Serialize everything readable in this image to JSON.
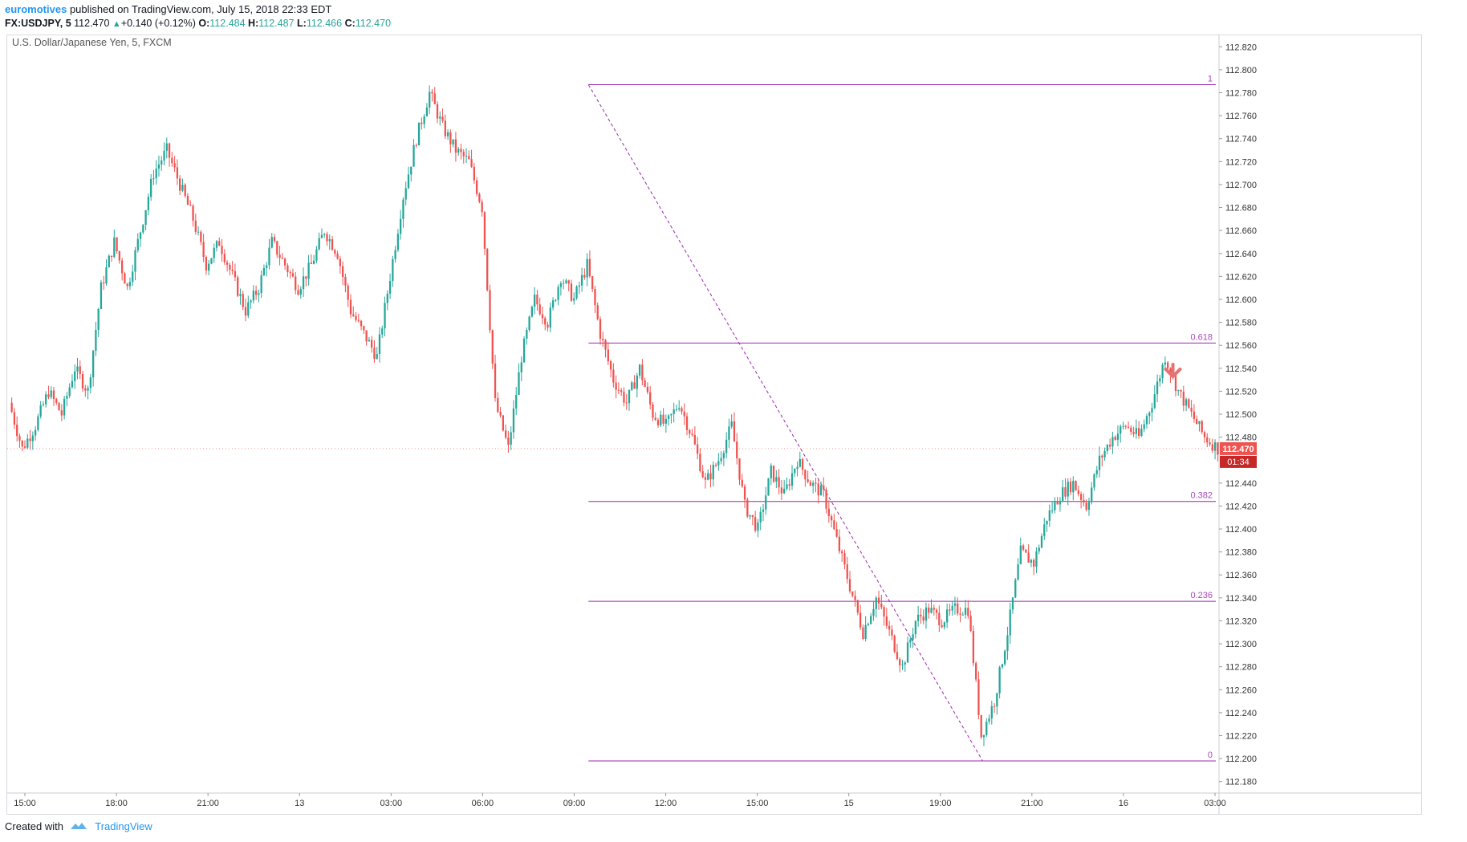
{
  "header": {
    "author": "euromotives",
    "published": "published on TradingView.com, July 15, 2018 22:33 EDT",
    "symbol": "FX:USDJPY, 5",
    "last": "112.470",
    "change": "+0.140 (+0.12%)",
    "o_label": "O:",
    "o_value": "112.484",
    "h_label": "H:",
    "h_value": "112.487",
    "l_label": "L:",
    "l_value": "112.466",
    "c_label": "C:",
    "c_value": "112.470"
  },
  "footer": {
    "created_with": "Created with",
    "brand": "TradingView",
    "logo_icon": "tradingview-logo-icon"
  },
  "colors": {
    "up": "#26a69a",
    "down": "#ef5350",
    "fib": "#9c27b0",
    "fib_label": "#ab47bc",
    "price_badge": "#ef5350",
    "arrow": "#e57373"
  },
  "chart_data": {
    "type": "candlestick",
    "title": "U.S. Dollar/Japanese Yen, 5, FXCM",
    "y_ticks": [
      "112.820",
      "112.800",
      "112.780",
      "112.760",
      "112.740",
      "112.720",
      "112.700",
      "112.680",
      "112.660",
      "112.640",
      "112.620",
      "112.600",
      "112.580",
      "112.560",
      "112.540",
      "112.520",
      "112.500",
      "112.480",
      "112.440",
      "112.420",
      "112.400",
      "112.380",
      "112.360",
      "112.340",
      "112.320",
      "112.300",
      "112.280",
      "112.260",
      "112.240",
      "112.220",
      "112.200",
      "112.180"
    ],
    "ylim": [
      112.17,
      112.83
    ],
    "x_ticks": [
      "15:00",
      "18:00",
      "21:00",
      "13",
      "03:00",
      "06:00",
      "09:00",
      "12:00",
      "15:00",
      "15",
      "19:00",
      "21:00",
      "16",
      "03:00"
    ],
    "current_price": "112.470",
    "countdown": "01:34",
    "fib_levels": [
      {
        "label": "1",
        "price": 112.787
      },
      {
        "label": "0.618",
        "price": 112.562
      },
      {
        "label": "0.382",
        "price": 112.424
      },
      {
        "label": "0.236",
        "price": 112.337
      },
      {
        "label": "0",
        "price": 112.198
      }
    ],
    "price_path": [
      [
        0,
        112.51
      ],
      [
        5,
        112.47
      ],
      [
        10,
        112.49
      ],
      [
        15,
        112.52
      ],
      [
        20,
        112.5
      ],
      [
        25,
        112.54
      ],
      [
        30,
        112.52
      ],
      [
        35,
        112.61
      ],
      [
        40,
        112.65
      ],
      [
        45,
        112.61
      ],
      [
        50,
        112.66
      ],
      [
        55,
        112.71
      ],
      [
        60,
        112.73
      ],
      [
        65,
        112.7
      ],
      [
        70,
        112.67
      ],
      [
        75,
        112.63
      ],
      [
        80,
        112.65
      ],
      [
        85,
        112.62
      ],
      [
        90,
        112.59
      ],
      [
        95,
        112.61
      ],
      [
        100,
        112.65
      ],
      [
        105,
        112.63
      ],
      [
        110,
        112.61
      ],
      [
        115,
        112.63
      ],
      [
        120,
        112.66
      ],
      [
        125,
        112.64
      ],
      [
        130,
        112.59
      ],
      [
        135,
        112.57
      ],
      [
        140,
        112.55
      ],
      [
        145,
        112.62
      ],
      [
        150,
        112.69
      ],
      [
        155,
        112.74
      ],
      [
        160,
        112.78
      ],
      [
        165,
        112.75
      ],
      [
        170,
        112.73
      ],
      [
        175,
        112.72
      ],
      [
        180,
        112.68
      ],
      [
        185,
        112.51
      ],
      [
        190,
        112.47
      ],
      [
        195,
        112.55
      ],
      [
        200,
        112.6
      ],
      [
        205,
        112.58
      ],
      [
        210,
        112.62
      ],
      [
        215,
        112.6
      ],
      [
        220,
        112.63
      ],
      [
        225,
        112.57
      ],
      [
        230,
        112.53
      ],
      [
        235,
        112.51
      ],
      [
        240,
        112.54
      ],
      [
        245,
        112.5
      ],
      [
        250,
        112.49
      ],
      [
        255,
        112.51
      ],
      [
        260,
        112.48
      ],
      [
        265,
        112.44
      ],
      [
        270,
        112.46
      ],
      [
        275,
        112.49
      ],
      [
        280,
        112.42
      ],
      [
        285,
        112.4
      ],
      [
        290,
        112.45
      ],
      [
        295,
        112.43
      ],
      [
        300,
        112.46
      ],
      [
        305,
        112.44
      ],
      [
        310,
        112.43
      ],
      [
        315,
        112.39
      ],
      [
        320,
        112.35
      ],
      [
        325,
        112.31
      ],
      [
        330,
        112.34
      ],
      [
        335,
        112.31
      ],
      [
        340,
        112.28
      ],
      [
        345,
        112.32
      ],
      [
        350,
        112.33
      ],
      [
        355,
        112.32
      ],
      [
        360,
        112.33
      ],
      [
        365,
        112.33
      ],
      [
        370,
        112.22
      ],
      [
        375,
        112.25
      ],
      [
        380,
        112.31
      ],
      [
        385,
        112.38
      ],
      [
        390,
        112.37
      ],
      [
        395,
        112.41
      ],
      [
        400,
        112.43
      ],
      [
        405,
        112.44
      ],
      [
        410,
        112.42
      ],
      [
        415,
        112.46
      ],
      [
        420,
        112.48
      ],
      [
        425,
        112.49
      ],
      [
        430,
        112.48
      ],
      [
        435,
        112.51
      ],
      [
        440,
        112.55
      ],
      [
        445,
        112.52
      ],
      [
        450,
        112.5
      ],
      [
        455,
        112.48
      ],
      [
        460,
        112.47
      ]
    ],
    "candle_count": 460,
    "fib_start_index": 220,
    "arrow": "down"
  }
}
